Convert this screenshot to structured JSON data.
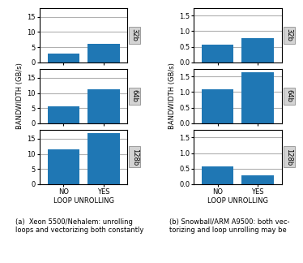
{
  "chart_data": [
    {
      "type": "bar",
      "title": "32b",
      "categories": [
        "NO",
        "YES"
      ],
      "values": [
        3.0,
        6.2
      ],
      "ylim": [
        0,
        18
      ],
      "yticks": [
        0,
        5,
        10,
        15
      ],
      "grid": true,
      "tick_labels": "y"
    },
    {
      "type": "bar",
      "title": "64b",
      "categories": [
        "NO",
        "YES"
      ],
      "values": [
        5.7,
        11.2
      ],
      "ylim": [
        0,
        18
      ],
      "yticks": [
        0,
        5,
        10,
        15
      ],
      "grid": true,
      "tick_labels": "y",
      "y_label": "BANDWIDTH (GB/s)"
    },
    {
      "type": "bar",
      "title": "128b",
      "categories": [
        "NO",
        "YES"
      ],
      "values": [
        11.5,
        17.0
      ],
      "ylim": [
        0,
        18
      ],
      "yticks": [
        0,
        5,
        10,
        15
      ],
      "grid": true,
      "tick_labels": true,
      "x_label": "LOOP UNROLLING",
      "annotations": [
        "(a)  Xeon 5500/Nehalem: unrolling\nloops and vectorizing both constantly"
      ]
    },
    {
      "type": "bar",
      "title": "32b",
      "categories": [
        "NO",
        "YES"
      ],
      "values": [
        0.58,
        0.78
      ],
      "ylim": [
        0,
        1.75
      ],
      "yticks": [
        0.0,
        0.5,
        1.0,
        1.5
      ],
      "grid": true,
      "tick_labels": "y"
    },
    {
      "type": "bar",
      "title": "64b",
      "categories": [
        "NO",
        "YES"
      ],
      "values": [
        1.1,
        1.65
      ],
      "ylim": [
        0,
        1.75
      ],
      "yticks": [
        0.0,
        0.5,
        1.0,
        1.5
      ],
      "grid": true,
      "tick_labels": "y",
      "y_label": "BANDWIDTH (GB/s)"
    },
    {
      "type": "bar",
      "title": "128b",
      "categories": [
        "NO",
        "YES"
      ],
      "values": [
        0.57,
        0.27
      ],
      "ylim": [
        0,
        1.75
      ],
      "yticks": [
        0.0,
        0.5,
        1.0,
        1.5
      ],
      "grid": true,
      "tick_labels": true,
      "x_label": "LOOP UNROLLING",
      "annotations": [
        "(b) Snowball/ARM A9500: both vec-\ntorizing and loop unrolling may be"
      ]
    }
  ]
}
